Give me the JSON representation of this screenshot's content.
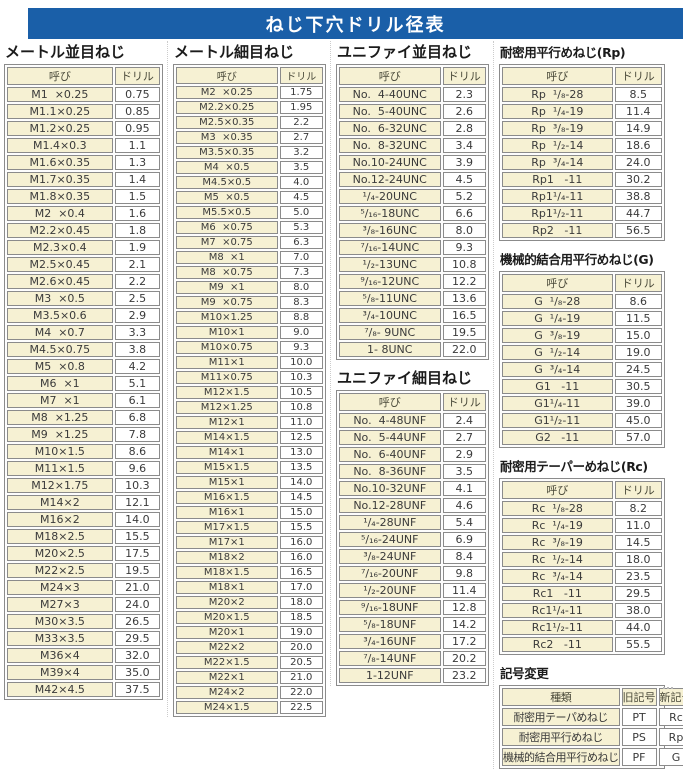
{
  "title": "ねじ下穴ドリル径表",
  "colors": {
    "header_bg": "#1a5fa8",
    "cell_yellow": "#f6f1d3",
    "border": "#8b8b8b"
  },
  "col_headers": {
    "name": "呼び",
    "drill": "ドリル"
  },
  "sections": {
    "metric_coarse": {
      "title": "メートル並目ねじ",
      "rows": [
        [
          "M1  ×0.25",
          "0.75"
        ],
        [
          "M1.1×0.25",
          "0.85"
        ],
        [
          "M1.2×0.25",
          "0.95"
        ],
        [
          "M1.4×0.3",
          "1.1"
        ],
        [
          "M1.6×0.35",
          "1.3"
        ],
        [
          "M1.7×0.35",
          "1.4"
        ],
        [
          "M1.8×0.35",
          "1.5"
        ],
        [
          "M2  ×0.4",
          "1.6"
        ],
        [
          "M2.2×0.45",
          "1.8"
        ],
        [
          "M2.3×0.4",
          "1.9"
        ],
        [
          "M2.5×0.45",
          "2.1"
        ],
        [
          "M2.6×0.45",
          "2.2"
        ],
        [
          "M3  ×0.5",
          "2.5"
        ],
        [
          "M3.5×0.6",
          "2.9"
        ],
        [
          "M4  ×0.7",
          "3.3"
        ],
        [
          "M4.5×0.75",
          "3.8"
        ],
        [
          "M5  ×0.8",
          "4.2"
        ],
        [
          "M6  ×1",
          "5.1"
        ],
        [
          "M7  ×1",
          "6.1"
        ],
        [
          "M8  ×1.25",
          "6.8"
        ],
        [
          "M9  ×1.25",
          "7.8"
        ],
        [
          "M10×1.5",
          "8.6"
        ],
        [
          "M11×1.5",
          "9.6"
        ],
        [
          "M12×1.75",
          "10.3"
        ],
        [
          "M14×2",
          "12.1"
        ],
        [
          "M16×2",
          "14.0"
        ],
        [
          "M18×2.5",
          "15.5"
        ],
        [
          "M20×2.5",
          "17.5"
        ],
        [
          "M22×2.5",
          "19.5"
        ],
        [
          "M24×3",
          "21.0"
        ],
        [
          "M27×3",
          "24.0"
        ],
        [
          "M30×3.5",
          "26.5"
        ],
        [
          "M33×3.5",
          "29.5"
        ],
        [
          "M36×4",
          "32.0"
        ],
        [
          "M39×4",
          "35.0"
        ],
        [
          "M42×4.5",
          "37.5"
        ]
      ]
    },
    "metric_fine": {
      "title": "メートル細目ねじ",
      "rows": [
        [
          "M2  ×0.25",
          "1.75"
        ],
        [
          "M2.2×0.25",
          "1.95"
        ],
        [
          "M2.5×0.35",
          "2.2"
        ],
        [
          "M3  ×0.35",
          "2.7"
        ],
        [
          "M3.5×0.35",
          "3.2"
        ],
        [
          "M4  ×0.5",
          "3.5"
        ],
        [
          "M4.5×0.5",
          "4.0"
        ],
        [
          "M5  ×0.5",
          "4.5"
        ],
        [
          "M5.5×0.5",
          "5.0"
        ],
        [
          "M6  ×0.75",
          "5.3"
        ],
        [
          "M7  ×0.75",
          "6.3"
        ],
        [
          "M8  ×1",
          "7.0"
        ],
        [
          "M8  ×0.75",
          "7.3"
        ],
        [
          "M9  ×1",
          "8.0"
        ],
        [
          "M9  ×0.75",
          "8.3"
        ],
        [
          "M10×1.25",
          "8.8"
        ],
        [
          "M10×1",
          "9.0"
        ],
        [
          "M10×0.75",
          "9.3"
        ],
        [
          "M11×1",
          "10.0"
        ],
        [
          "M11×0.75",
          "10.3"
        ],
        [
          "M12×1.5",
          "10.5"
        ],
        [
          "M12×1.25",
          "10.8"
        ],
        [
          "M12×1",
          "11.0"
        ],
        [
          "M14×1.5",
          "12.5"
        ],
        [
          "M14×1",
          "13.0"
        ],
        [
          "M15×1.5",
          "13.5"
        ],
        [
          "M15×1",
          "14.0"
        ],
        [
          "M16×1.5",
          "14.5"
        ],
        [
          "M16×1",
          "15.0"
        ],
        [
          "M17×1.5",
          "15.5"
        ],
        [
          "M17×1",
          "16.0"
        ],
        [
          "M18×2",
          "16.0"
        ],
        [
          "M18×1.5",
          "16.5"
        ],
        [
          "M18×1",
          "17.0"
        ],
        [
          "M20×2",
          "18.0"
        ],
        [
          "M20×1.5",
          "18.5"
        ],
        [
          "M20×1",
          "19.0"
        ],
        [
          "M22×2",
          "20.0"
        ],
        [
          "M22×1.5",
          "20.5"
        ],
        [
          "M22×1",
          "21.0"
        ],
        [
          "M24×2",
          "22.0"
        ],
        [
          "M24×1.5",
          "22.5"
        ]
      ]
    },
    "unified_coarse": {
      "title": "ユニファイ並目ねじ",
      "rows": [
        [
          "No.  4-40UNC",
          "2.3"
        ],
        [
          "No.  5-40UNC",
          "2.6"
        ],
        [
          "No.  6-32UNC",
          "2.8"
        ],
        [
          "No.  8-32UNC",
          "3.4"
        ],
        [
          "No.10-24UNC",
          "3.9"
        ],
        [
          "No.12-24UNC",
          "4.5"
        ],
        [
          "¹/₄-20UNC",
          "5.2"
        ],
        [
          "⁵/₁₆-18UNC",
          "6.6"
        ],
        [
          "³/₈-16UNC",
          "8.0"
        ],
        [
          "⁷/₁₆-14UNC",
          "9.3"
        ],
        [
          "¹/₂-13UNC",
          "10.8"
        ],
        [
          "⁹/₁₆-12UNC",
          "12.2"
        ],
        [
          "⁵/₈-11UNC",
          "13.6"
        ],
        [
          "³/₄-10UNC",
          "16.5"
        ],
        [
          "⁷/₈- 9UNC",
          "19.5"
        ],
        [
          "1- 8UNC",
          "22.0"
        ]
      ]
    },
    "unified_fine": {
      "title": "ユニファイ細目ねじ",
      "rows": [
        [
          "No.  4-48UNF",
          "2.4"
        ],
        [
          "No.  5-44UNF",
          "2.7"
        ],
        [
          "No.  6-40UNF",
          "2.9"
        ],
        [
          "No.  8-36UNF",
          "3.5"
        ],
        [
          "No.10-32UNF",
          "4.1"
        ],
        [
          "No.12-28UNF",
          "4.6"
        ],
        [
          "¹/₄-28UNF",
          "5.4"
        ],
        [
          "⁵/₁₆-24UNF",
          "6.9"
        ],
        [
          "³/₈-24UNF",
          "8.4"
        ],
        [
          "⁷/₁₆-20UNF",
          "9.8"
        ],
        [
          "¹/₂-20UNF",
          "11.4"
        ],
        [
          "⁹/₁₆-18UNF",
          "12.8"
        ],
        [
          "⁵/₈-18UNF",
          "14.2"
        ],
        [
          "³/₄-16UNF",
          "17.2"
        ],
        [
          "⁷/₈-14UNF",
          "20.2"
        ],
        [
          "1-12UNF",
          "23.2"
        ]
      ]
    },
    "rp": {
      "title": "耐密用平行めねじ(Rp)",
      "rows": [
        [
          "Rp  ¹/₈-28",
          "8.5"
        ],
        [
          "Rp  ¹/₄-19",
          "11.4"
        ],
        [
          "Rp  ³/₈-19",
          "14.9"
        ],
        [
          "Rp  ¹/₂-14",
          "18.6"
        ],
        [
          "Rp  ³/₄-14",
          "24.0"
        ],
        [
          "Rp1   -11",
          "30.2"
        ],
        [
          "Rp1¹/₄-11",
          "38.8"
        ],
        [
          "Rp1¹/₂-11",
          "44.7"
        ],
        [
          "Rp2   -11",
          "56.5"
        ]
      ]
    },
    "g": {
      "title": "機械的結合用平行めねじ(G)",
      "rows": [
        [
          "G  ¹/₈-28",
          "8.6"
        ],
        [
          "G  ¹/₄-19",
          "11.5"
        ],
        [
          "G  ³/₈-19",
          "15.0"
        ],
        [
          "G  ¹/₂-14",
          "19.0"
        ],
        [
          "G  ³/₄-14",
          "24.5"
        ],
        [
          "G1   -11",
          "30.5"
        ],
        [
          "G1¹/₄-11",
          "39.0"
        ],
        [
          "G1¹/₂-11",
          "45.0"
        ],
        [
          "G2   -11",
          "57.0"
        ]
      ]
    },
    "rc": {
      "title": "耐密用テーパーめねじ(Rc)",
      "rows": [
        [
          "Rc  ¹/₈-28",
          "8.2"
        ],
        [
          "Rc  ¹/₄-19",
          "11.0"
        ],
        [
          "Rc  ³/₈-19",
          "14.5"
        ],
        [
          "Rc  ¹/₂-14",
          "18.0"
        ],
        [
          "Rc  ³/₄-14",
          "23.5"
        ],
        [
          "Rc1   -11",
          "29.5"
        ],
        [
          "Rc1¹/₄-11",
          "38.0"
        ],
        [
          "Rc1¹/₂-11",
          "44.0"
        ],
        [
          "Rc2   -11",
          "55.5"
        ]
      ]
    },
    "symbol_change": {
      "title": "記号変更",
      "headers": [
        "種類",
        "旧記号",
        "新記号"
      ],
      "rows": [
        [
          "耐密用テーパめねじ",
          "PT",
          "Rc"
        ],
        [
          "耐密用平行めねじ",
          "PS",
          "Rp"
        ],
        [
          "機械的結合用平行めねじ",
          "PF",
          "G"
        ]
      ]
    }
  }
}
